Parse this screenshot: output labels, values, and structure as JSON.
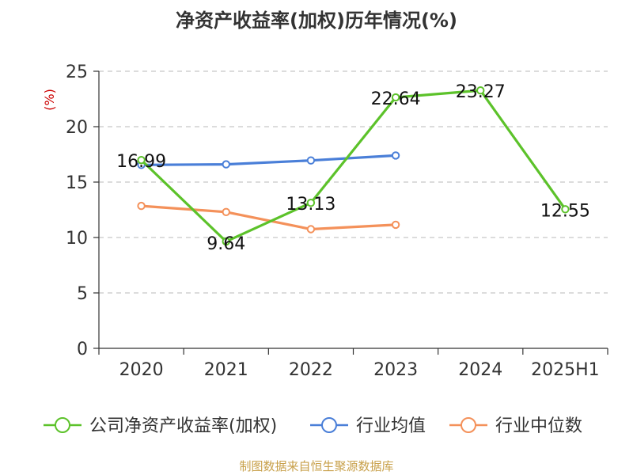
{
  "title": "净资产收益率(加权)历年情况(%)",
  "source": "制图数据来自恒生聚源数据库",
  "chart_data": {
    "type": "line",
    "title": "净资产收益率(加权)历年情况(%)",
    "ylabel": "(%)",
    "xlabel": "",
    "categories": [
      "2020",
      "2021",
      "2022",
      "2023",
      "2024",
      "2025H1"
    ],
    "ylim": [
      0,
      25
    ],
    "yticks": [
      0,
      5,
      10,
      15,
      20,
      25
    ],
    "grid": "horizontal dashed",
    "legend_position": "bottom",
    "series": [
      {
        "name": "公司净资产收益率(加权)",
        "color": "#5cc22a",
        "values": [
          16.99,
          9.64,
          13.13,
          22.64,
          23.27,
          12.55
        ],
        "labels": [
          "16.99",
          "9.64",
          "13.13",
          "22.64",
          "23.27",
          "12.55"
        ]
      },
      {
        "name": "行业均值",
        "color": "#4a7fd8",
        "values": [
          16.55,
          16.6,
          16.95,
          17.4,
          null,
          null
        ]
      },
      {
        "name": "行业中位数",
        "color": "#f4915a",
        "values": [
          12.85,
          12.3,
          10.75,
          11.15,
          null,
          null
        ]
      }
    ]
  }
}
